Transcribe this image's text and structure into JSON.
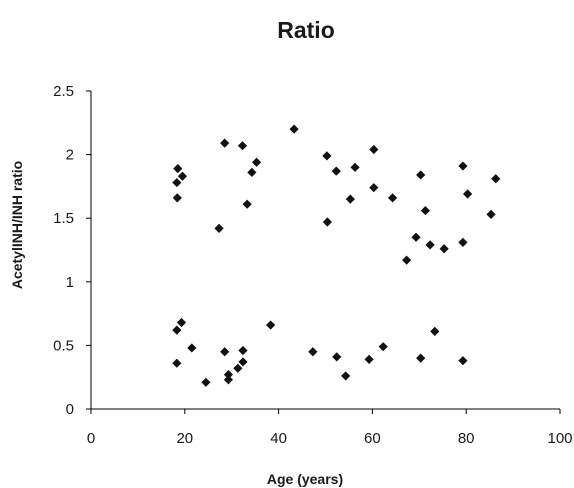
{
  "chart_data": {
    "type": "scatter",
    "title": "Ratio",
    "xlabel": "Age (years)",
    "ylabel": "AcetylINH/INH ratio",
    "xlim": [
      0,
      100
    ],
    "ylim": [
      0,
      2.5
    ],
    "xticks": [
      "0",
      "20",
      "40",
      "60",
      "80",
      "100"
    ],
    "yticks": [
      "0",
      "0.5",
      "1",
      "1.5",
      "2",
      "2.5"
    ],
    "grid": false,
    "marker": "diamond",
    "marker_color": "#111111",
    "points": [
      {
        "x": 18.5,
        "y": 1.89
      },
      {
        "x": 18.3,
        "y": 1.78
      },
      {
        "x": 19.5,
        "y": 1.83
      },
      {
        "x": 18.4,
        "y": 1.66
      },
      {
        "x": 18.3,
        "y": 0.62
      },
      {
        "x": 19.3,
        "y": 0.68
      },
      {
        "x": 21.5,
        "y": 0.48
      },
      {
        "x": 18.3,
        "y": 0.36
      },
      {
        "x": 24.5,
        "y": 0.21
      },
      {
        "x": 27.3,
        "y": 1.42
      },
      {
        "x": 28.5,
        "y": 2.09
      },
      {
        "x": 28.5,
        "y": 0.45
      },
      {
        "x": 29.3,
        "y": 0.27
      },
      {
        "x": 29.3,
        "y": 0.23
      },
      {
        "x": 31.3,
        "y": 0.32
      },
      {
        "x": 32.3,
        "y": 2.07
      },
      {
        "x": 32.4,
        "y": 0.46
      },
      {
        "x": 32.4,
        "y": 0.37
      },
      {
        "x": 33.3,
        "y": 1.61
      },
      {
        "x": 34.3,
        "y": 1.86
      },
      {
        "x": 35.3,
        "y": 1.94
      },
      {
        "x": 38.3,
        "y": 0.66
      },
      {
        "x": 43.3,
        "y": 2.2
      },
      {
        "x": 47.3,
        "y": 0.45
      },
      {
        "x": 50.3,
        "y": 1.99
      },
      {
        "x": 50.4,
        "y": 1.47
      },
      {
        "x": 52.3,
        "y": 1.87
      },
      {
        "x": 52.4,
        "y": 0.41
      },
      {
        "x": 54.3,
        "y": 0.26
      },
      {
        "x": 55.3,
        "y": 1.65
      },
      {
        "x": 56.3,
        "y": 1.9
      },
      {
        "x": 59.3,
        "y": 0.39
      },
      {
        "x": 60.3,
        "y": 2.04
      },
      {
        "x": 60.3,
        "y": 1.74
      },
      {
        "x": 62.3,
        "y": 0.49
      },
      {
        "x": 64.3,
        "y": 1.66
      },
      {
        "x": 67.3,
        "y": 1.17
      },
      {
        "x": 69.3,
        "y": 1.35
      },
      {
        "x": 70.3,
        "y": 1.84
      },
      {
        "x": 70.3,
        "y": 0.4
      },
      {
        "x": 71.3,
        "y": 1.56
      },
      {
        "x": 72.3,
        "y": 1.29
      },
      {
        "x": 73.3,
        "y": 0.61
      },
      {
        "x": 75.3,
        "y": 1.26
      },
      {
        "x": 79.3,
        "y": 1.91
      },
      {
        "x": 79.3,
        "y": 1.31
      },
      {
        "x": 79.3,
        "y": 0.38
      },
      {
        "x": 80.3,
        "y": 1.69
      },
      {
        "x": 85.3,
        "y": 1.53
      },
      {
        "x": 86.3,
        "y": 1.81
      }
    ]
  }
}
